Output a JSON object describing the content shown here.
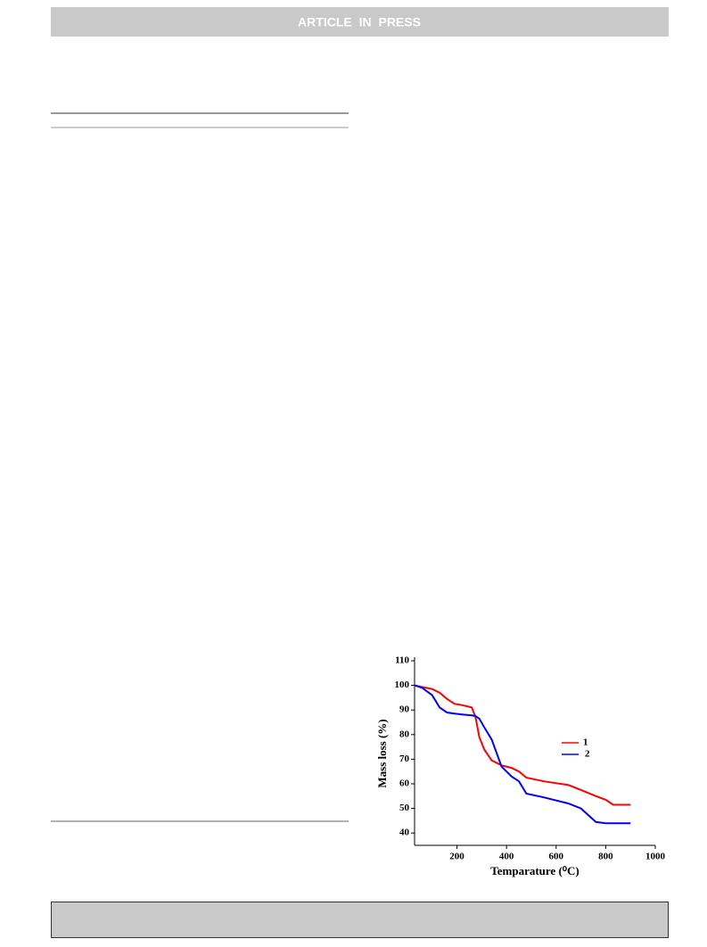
{
  "header": {
    "title": "ARTICLE IN PRESS"
  },
  "chart_data": {
    "type": "line",
    "xlabel": "Temparature (⁰C)",
    "ylabel": "Mass loss (%)",
    "x": [
      29,
      60,
      100,
      130,
      160,
      190,
      220,
      260,
      275,
      290,
      310,
      340,
      380,
      420,
      450,
      480,
      550,
      650,
      700,
      760,
      800,
      830,
      900
    ],
    "series": [
      {
        "name": "1",
        "color": "#ff0000",
        "values": [
          100,
          99.3,
          98.5,
          97,
          94.5,
          92.5,
          92,
          91,
          87,
          79,
          74,
          69.5,
          67.5,
          66.5,
          65,
          62.5,
          61,
          59.5,
          57.5,
          55,
          53.5,
          51.5,
          51.5
        ]
      },
      {
        "name": "2",
        "color": "#0000ff",
        "values": [
          100,
          99,
          96,
          91,
          89,
          88.5,
          88.2,
          87.8,
          87.5,
          86.5,
          83,
          78,
          67,
          63,
          61,
          56,
          54.5,
          52,
          50,
          44.5,
          44,
          44,
          44
        ]
      }
    ],
    "xlim": [
      29,
      1000
    ],
    "xticks": [
      200,
      400,
      600,
      800,
      1000
    ],
    "ylim": [
      35,
      110
    ],
    "yticks": [
      40,
      50,
      60,
      70,
      80,
      90,
      100,
      110
    ],
    "grid": false
  }
}
